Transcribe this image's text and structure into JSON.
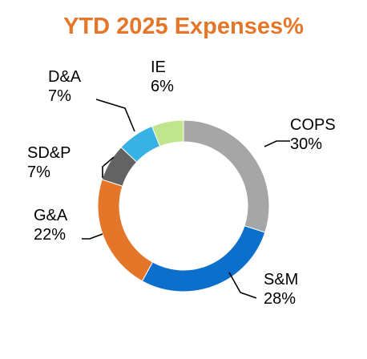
{
  "title_color": "#E4762A",
  "chart_data": {
    "type": "pie",
    "donut": true,
    "title": "YTD 2025 Expenses%",
    "legend": "none",
    "slices": [
      {
        "label": "COPS",
        "value": 30,
        "value_label": "30%",
        "color": "#A6A6A6"
      },
      {
        "label": "S&M",
        "value": 28,
        "value_label": "28%",
        "color": "#0B6FCB"
      },
      {
        "label": "G&A",
        "value": 22,
        "value_label": "22%",
        "color": "#E4762A"
      },
      {
        "label": "SD&P",
        "value": 7,
        "value_label": "7%",
        "color": "#636363"
      },
      {
        "label": "D&A",
        "value": 7,
        "value_label": "7%",
        "color": "#38B2E4"
      },
      {
        "label": "IE",
        "value": 6,
        "value_label": "6%",
        "color": "#BFE68C"
      }
    ]
  }
}
